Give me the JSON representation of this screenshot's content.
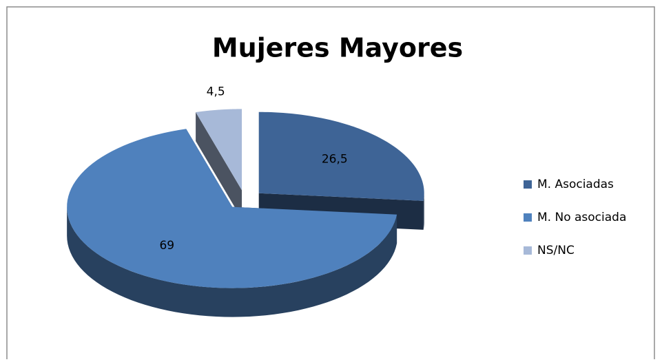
{
  "chart_data": {
    "type": "pie",
    "title": "Mujeres Mayores",
    "categories": [
      "M. Asociadas",
      "M. No asociada",
      "NS/NC"
    ],
    "values": [
      26.5,
      69,
      4.5
    ],
    "value_labels": [
      "26,5",
      "69",
      "4,5"
    ],
    "colors": [
      "#3e6496",
      "#4f81bd",
      "#a7b9d8"
    ],
    "legend": "right"
  }
}
